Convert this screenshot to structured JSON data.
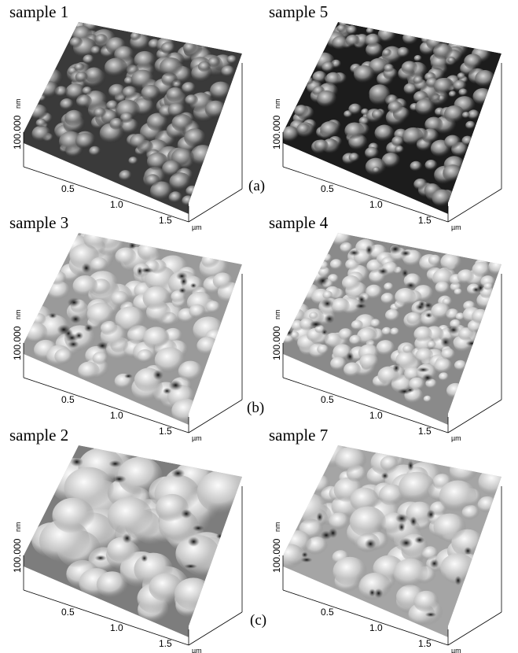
{
  "panels": [
    {
      "title": "sample 1",
      "z_label": "100.000",
      "z_unit": "nm",
      "x_ticks": [
        "0.5",
        "1.0",
        "1.5"
      ],
      "x_unit": "µm"
    },
    {
      "title": "sample 5",
      "z_label": "100.000",
      "z_unit": "nm",
      "x_ticks": [
        "0.5",
        "1.0",
        "1.5"
      ],
      "x_unit": "µm"
    },
    {
      "title": "sample 3",
      "z_label": "100.000",
      "z_unit": "nm",
      "x_ticks": [
        "0.5",
        "1.0",
        "1.5"
      ],
      "x_unit": "µm"
    },
    {
      "title": "sample 4",
      "z_label": "100.000",
      "z_unit": "nm",
      "x_ticks": [
        "0.5",
        "1.0",
        "1.5"
      ],
      "x_unit": "µm"
    },
    {
      "title": "sample 2",
      "z_label": "100.000",
      "z_unit": "nm",
      "x_ticks": [
        "0.5",
        "1.0",
        "1.5"
      ],
      "x_unit": "µm"
    },
    {
      "title": "sample 7",
      "z_label": "100.000",
      "z_unit": "nm",
      "x_ticks": [
        "0.5",
        "1.0",
        "1.5"
      ],
      "x_unit": "µm"
    }
  ],
  "row_labels": [
    "(a)",
    "(b)",
    "(c)"
  ]
}
